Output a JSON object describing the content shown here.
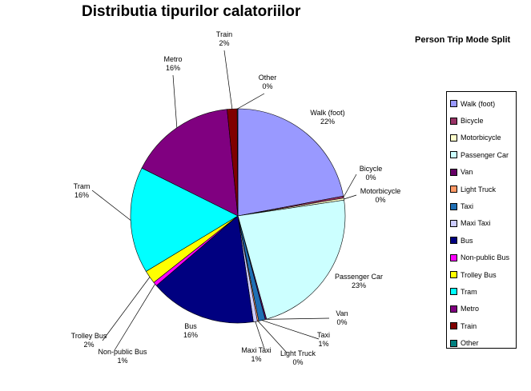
{
  "chart_data": {
    "type": "pie",
    "title": "Distributia tipurilor calatoriilor",
    "subtitle": "Person Trip Mode Split",
    "legend_position": "right",
    "slices": [
      {
        "name": "Walk (foot)",
        "value": 22,
        "label": "22%",
        "color": "#9999ff"
      },
      {
        "name": "Bicycle",
        "value": 0.3,
        "label": "0%",
        "color": "#993366"
      },
      {
        "name": "Motorbicycle",
        "value": 0.3,
        "label": "0%",
        "color": "#ffffcc"
      },
      {
        "name": "Passenger Car",
        "value": 23,
        "label": "23%",
        "color": "#ccffff"
      },
      {
        "name": "Van",
        "value": 0.2,
        "label": "0%",
        "color": "#660066"
      },
      {
        "name": "Taxi",
        "value": 1,
        "label": "1%",
        "color": "#1f6fb4"
      },
      {
        "name": "Light Truck",
        "value": 0.2,
        "label": "0%",
        "color": "#ff9966"
      },
      {
        "name": "Maxi Taxi",
        "value": 0.6,
        "label": "1%",
        "color": "#ccccff"
      },
      {
        "name": "Bus",
        "value": 16,
        "label": "16%",
        "color": "#000080"
      },
      {
        "name": "Non-public Bus",
        "value": 0.6,
        "label": "1%",
        "color": "#ff00ff"
      },
      {
        "name": "Trolley Bus",
        "value": 2,
        "label": "2%",
        "color": "#ffff00"
      },
      {
        "name": "Tram",
        "value": 16,
        "label": "16%",
        "color": "#00ffff"
      },
      {
        "name": "Metro",
        "value": 16,
        "label": "16%",
        "color": "#800080"
      },
      {
        "name": "Train",
        "value": 1.5,
        "label": "2%",
        "color": "#800000"
      },
      {
        "name": "Other",
        "value": 0.1,
        "label": "0%",
        "color": "#008080"
      }
    ],
    "legend": [
      {
        "name": "Walk (foot)",
        "color": "#9999ff"
      },
      {
        "name": "Bicycle",
        "color": "#993366"
      },
      {
        "name": "Motorbicycle",
        "color": "#ffffcc"
      },
      {
        "name": "Passenger Car",
        "color": "#ccffff"
      },
      {
        "name": "Van",
        "color": "#660066"
      },
      {
        "name": "Light Truck",
        "color": "#ff9966"
      },
      {
        "name": "Taxi",
        "color": "#1f6fb4"
      },
      {
        "name": "Maxi Taxi",
        "color": "#ccccff"
      },
      {
        "name": "Bus",
        "color": "#000080"
      },
      {
        "name": "Non-public Bus",
        "color": "#ff00ff"
      },
      {
        "name": "Trolley Bus",
        "color": "#ffff00"
      },
      {
        "name": "Tram",
        "color": "#00ffff"
      },
      {
        "name": "Metro",
        "color": "#800080"
      },
      {
        "name": "Train",
        "color": "#800000"
      },
      {
        "name": "Other",
        "color": "#008080"
      }
    ]
  }
}
